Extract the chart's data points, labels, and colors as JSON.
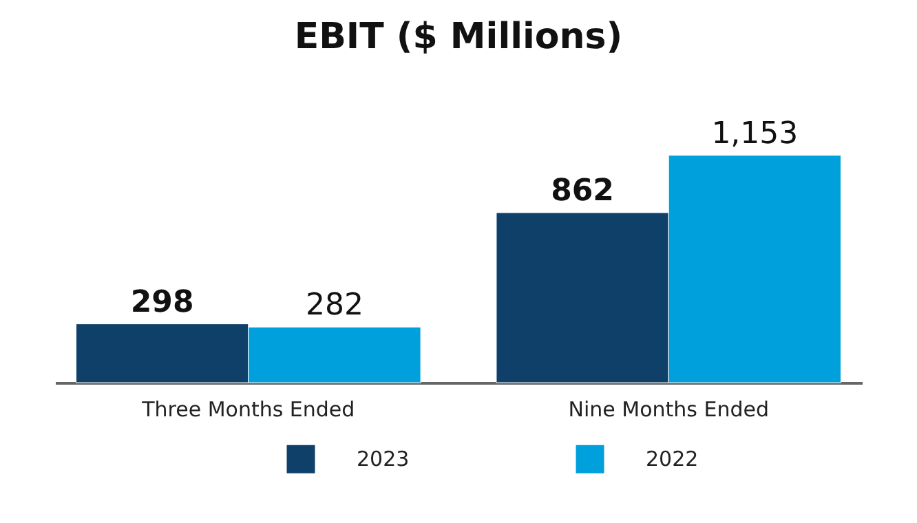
{
  "chart_data": {
    "type": "bar",
    "title": "EBIT ($ Millions)",
    "categories": [
      "Three Months Ended",
      "Nine Months Ended"
    ],
    "series": [
      {
        "name": "2023",
        "color": "#0e406a",
        "values": [
          298,
          862
        ],
        "value_labels": [
          "298",
          "862"
        ]
      },
      {
        "name": "2022",
        "color": "#00a0dc",
        "values": [
          282,
          1153
        ],
        "value_labels": [
          "282",
          "1,153"
        ]
      }
    ],
    "legend": "bottom",
    "grid": false
  }
}
